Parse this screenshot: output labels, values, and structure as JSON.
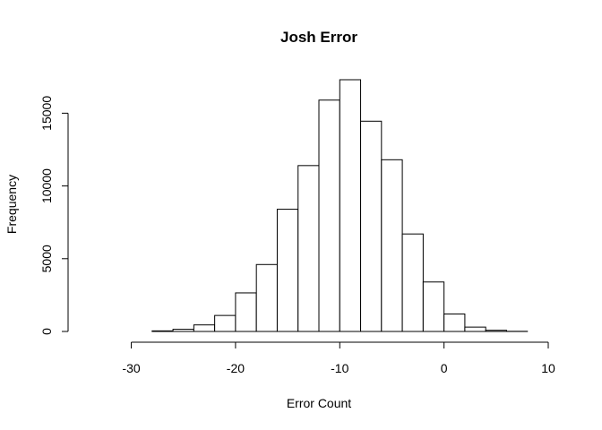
{
  "chart_data": {
    "type": "bar",
    "title": "Josh Error",
    "xlabel": "Error Count",
    "ylabel": "Frequency",
    "bin_width": 2,
    "bin_starts": [
      -34,
      -32,
      -30,
      -28,
      -26,
      -24,
      -22,
      -20,
      -18,
      -16,
      -14,
      -12,
      -10,
      -8,
      -6,
      -4,
      -2,
      0,
      2,
      4,
      6,
      8
    ],
    "values": [
      0,
      0,
      0,
      40,
      150,
      450,
      1100,
      2650,
      4600,
      8400,
      11400,
      15900,
      17300,
      14450,
      11800,
      6700,
      3400,
      1200,
      300,
      80,
      10,
      0
    ],
    "xlim": [
      -34,
      10
    ],
    "ylim": [
      0,
      17300
    ],
    "x_ticks": [
      -30,
      -20,
      -10,
      0,
      10
    ],
    "x_tick_labels": [
      "-30",
      "-20",
      "-10",
      "0",
      "10"
    ],
    "y_ticks": [
      0,
      5000,
      10000,
      15000
    ],
    "y_tick_labels": [
      "0",
      "5000",
      "10000",
      "15000"
    ],
    "grid": false,
    "legend": "none"
  },
  "colors": {
    "bar_fill": "#ffffff",
    "bar_stroke": "#000000",
    "background": "#ffffff"
  }
}
